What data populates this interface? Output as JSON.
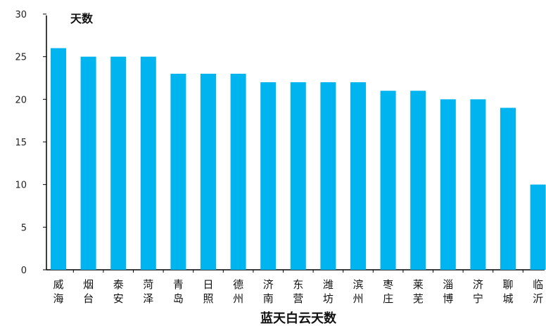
{
  "chart_data": {
    "type": "bar",
    "ylabel": "天数",
    "xlabel": "蓝天白云天数",
    "ylim": [
      0,
      30
    ],
    "yticks": [
      0,
      5,
      10,
      15,
      20,
      25,
      30
    ],
    "grid": false,
    "bar_color": "#00b4f0",
    "categories": [
      [
        "威",
        "海"
      ],
      [
        "烟",
        "台"
      ],
      [
        "泰",
        "安"
      ],
      [
        "菏",
        "泽"
      ],
      [
        "青",
        "岛"
      ],
      [
        "日",
        "照"
      ],
      [
        "德",
        "州"
      ],
      [
        "济",
        "南"
      ],
      [
        "东",
        "营"
      ],
      [
        "潍",
        "坊"
      ],
      [
        "滨",
        "州"
      ],
      [
        "枣",
        "庄"
      ],
      [
        "莱",
        "芜"
      ],
      [
        "淄",
        "博"
      ],
      [
        "济",
        "宁"
      ],
      [
        "聊",
        "城"
      ],
      [
        "临",
        "沂"
      ]
    ],
    "values": [
      26,
      25,
      25,
      25,
      23,
      23,
      23,
      22,
      22,
      22,
      22,
      21,
      21,
      20,
      20,
      19,
      10
    ]
  }
}
